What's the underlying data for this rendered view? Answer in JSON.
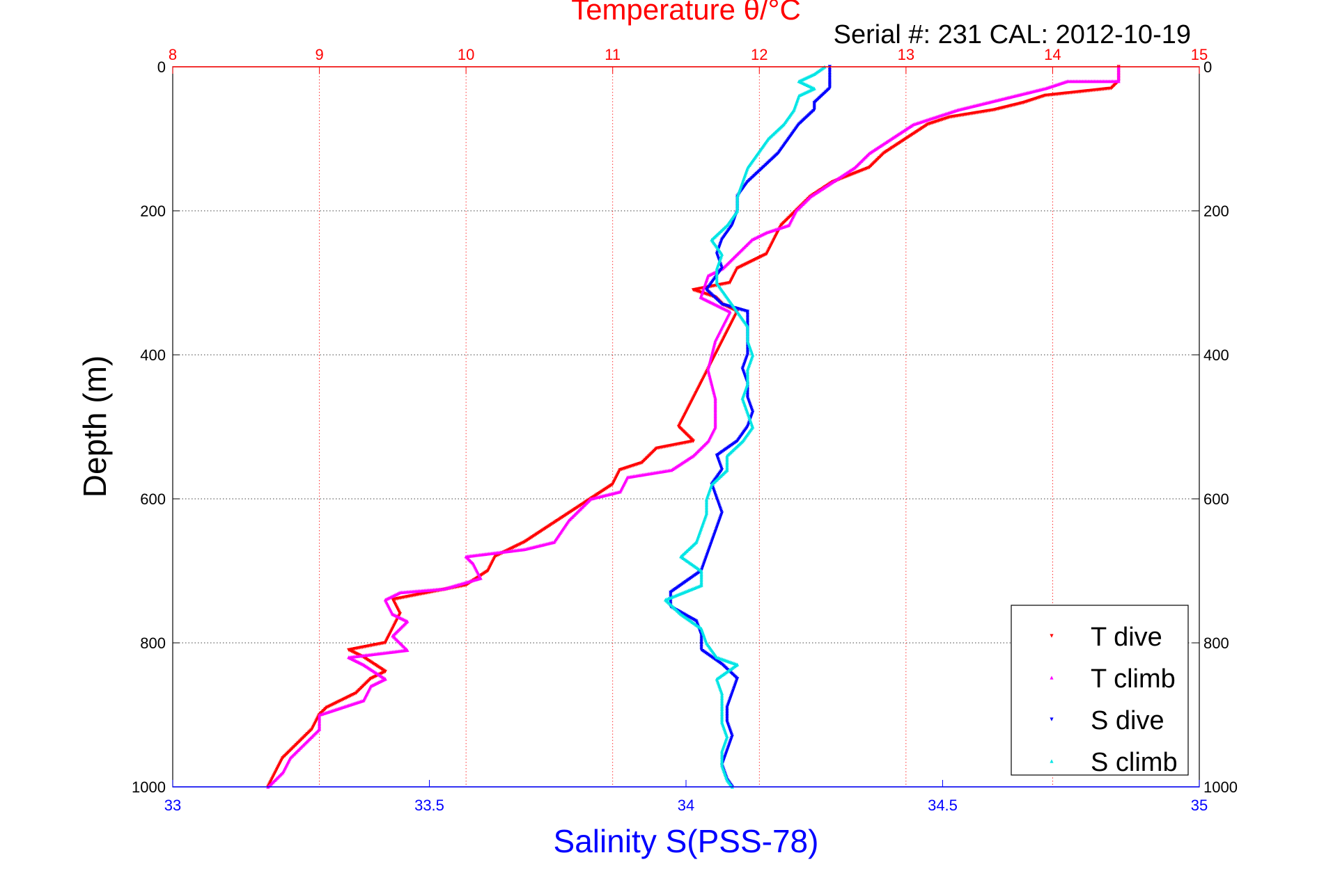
{
  "chart_data": {
    "type": "scatter",
    "title": "Temperature θ/°C",
    "subtitle": "Serial #: 231  CAL: 2012-10-19",
    "ylabel": "Depth (m)",
    "x_top_label": "Temperature θ/°C",
    "x_bottom_label": "Salinity S(PSS-78)",
    "ylim": [
      1000,
      0
    ],
    "y_reversed": true,
    "y_ticks": [
      0,
      200,
      400,
      600,
      800,
      1000
    ],
    "temperature_axis": {
      "range": [
        8,
        15
      ],
      "ticks": [
        8,
        9,
        10,
        11,
        12,
        13,
        14,
        15
      ],
      "color": "#ff0000",
      "position": "top"
    },
    "salinity_axis": {
      "range": [
        33,
        35
      ],
      "ticks": [
        33,
        33.5,
        34,
        34.5,
        35
      ],
      "color": "#0000ff",
      "position": "bottom"
    },
    "grid": true,
    "legend_position": "bottom-right",
    "series": [
      {
        "name": "T dive",
        "axis": "temperature",
        "color": "#ff0000",
        "marker": "triangle-down",
        "points": [
          [
            14.45,
            0
          ],
          [
            14.45,
            20
          ],
          [
            14.4,
            30
          ],
          [
            13.95,
            40
          ],
          [
            13.8,
            50
          ],
          [
            13.6,
            60
          ],
          [
            13.3,
            70
          ],
          [
            13.15,
            80
          ],
          [
            13.0,
            100
          ],
          [
            12.85,
            120
          ],
          [
            12.75,
            140
          ],
          [
            12.5,
            160
          ],
          [
            12.35,
            180
          ],
          [
            12.25,
            200
          ],
          [
            12.15,
            220
          ],
          [
            12.1,
            240
          ],
          [
            12.05,
            260
          ],
          [
            11.95,
            270
          ],
          [
            11.85,
            280
          ],
          [
            11.8,
            300
          ],
          [
            11.55,
            310
          ],
          [
            11.7,
            320
          ],
          [
            11.75,
            330
          ],
          [
            11.85,
            340
          ],
          [
            11.8,
            360
          ],
          [
            11.75,
            380
          ],
          [
            11.7,
            400
          ],
          [
            11.65,
            420
          ],
          [
            11.6,
            440
          ],
          [
            11.55,
            460
          ],
          [
            11.5,
            480
          ],
          [
            11.45,
            500
          ],
          [
            11.5,
            510
          ],
          [
            11.55,
            520
          ],
          [
            11.3,
            530
          ],
          [
            11.2,
            550
          ],
          [
            11.05,
            560
          ],
          [
            11.0,
            580
          ],
          [
            10.85,
            600
          ],
          [
            10.7,
            620
          ],
          [
            10.55,
            640
          ],
          [
            10.4,
            660
          ],
          [
            10.2,
            680
          ],
          [
            10.15,
            700
          ],
          [
            10.0,
            720
          ],
          [
            9.75,
            730
          ],
          [
            9.5,
            740
          ],
          [
            9.55,
            760
          ],
          [
            9.5,
            780
          ],
          [
            9.45,
            800
          ],
          [
            9.2,
            810
          ],
          [
            9.3,
            820
          ],
          [
            9.45,
            840
          ],
          [
            9.35,
            850
          ],
          [
            9.25,
            870
          ],
          [
            9.05,
            890
          ],
          [
            9.0,
            900
          ],
          [
            8.95,
            920
          ],
          [
            8.85,
            940
          ],
          [
            8.75,
            960
          ],
          [
            8.7,
            980
          ],
          [
            8.65,
            1000
          ]
        ]
      },
      {
        "name": "T climb",
        "axis": "temperature",
        "color": "#ff00ff",
        "marker": "triangle-up",
        "points": [
          [
            14.45,
            0
          ],
          [
            14.45,
            20
          ],
          [
            14.1,
            20
          ],
          [
            13.95,
            30
          ],
          [
            13.75,
            40
          ],
          [
            13.55,
            50
          ],
          [
            13.35,
            60
          ],
          [
            13.2,
            70
          ],
          [
            13.05,
            80
          ],
          [
            12.9,
            100
          ],
          [
            12.75,
            120
          ],
          [
            12.65,
            140
          ],
          [
            12.5,
            160
          ],
          [
            12.35,
            180
          ],
          [
            12.25,
            200
          ],
          [
            12.2,
            220
          ],
          [
            12.05,
            230
          ],
          [
            11.95,
            240
          ],
          [
            11.85,
            260
          ],
          [
            11.75,
            280
          ],
          [
            11.65,
            290
          ],
          [
            11.6,
            320
          ],
          [
            11.8,
            340
          ],
          [
            11.7,
            380
          ],
          [
            11.65,
            420
          ],
          [
            11.7,
            460
          ],
          [
            11.7,
            500
          ],
          [
            11.65,
            520
          ],
          [
            11.55,
            540
          ],
          [
            11.4,
            560
          ],
          [
            11.1,
            570
          ],
          [
            11.05,
            590
          ],
          [
            10.85,
            600
          ],
          [
            10.7,
            630
          ],
          [
            10.6,
            660
          ],
          [
            10.4,
            670
          ],
          [
            10.0,
            680
          ],
          [
            10.05,
            690
          ],
          [
            10.1,
            710
          ],
          [
            9.85,
            725
          ],
          [
            9.55,
            730
          ],
          [
            9.45,
            740
          ],
          [
            9.5,
            760
          ],
          [
            9.6,
            770
          ],
          [
            9.5,
            790
          ],
          [
            9.6,
            810
          ],
          [
            9.2,
            820
          ],
          [
            9.3,
            830
          ],
          [
            9.45,
            850
          ],
          [
            9.35,
            860
          ],
          [
            9.3,
            880
          ],
          [
            9.0,
            900
          ],
          [
            9.0,
            920
          ],
          [
            8.9,
            940
          ],
          [
            8.8,
            960
          ],
          [
            8.75,
            980
          ],
          [
            8.65,
            1000
          ]
        ]
      },
      {
        "name": "S dive",
        "axis": "salinity",
        "color": "#0000ff",
        "marker": "triangle-down",
        "points": [
          [
            34.28,
            0
          ],
          [
            34.28,
            20
          ],
          [
            34.28,
            30
          ],
          [
            34.25,
            50
          ],
          [
            34.25,
            60
          ],
          [
            34.22,
            80
          ],
          [
            34.2,
            100
          ],
          [
            34.18,
            120
          ],
          [
            34.15,
            140
          ],
          [
            34.12,
            160
          ],
          [
            34.1,
            180
          ],
          [
            34.1,
            200
          ],
          [
            34.09,
            220
          ],
          [
            34.07,
            240
          ],
          [
            34.06,
            260
          ],
          [
            34.07,
            280
          ],
          [
            34.05,
            300
          ],
          [
            34.04,
            310
          ],
          [
            34.07,
            330
          ],
          [
            34.12,
            340
          ],
          [
            34.12,
            360
          ],
          [
            34.12,
            380
          ],
          [
            34.12,
            400
          ],
          [
            34.11,
            420
          ],
          [
            34.12,
            440
          ],
          [
            34.12,
            460
          ],
          [
            34.13,
            480
          ],
          [
            34.12,
            500
          ],
          [
            34.1,
            520
          ],
          [
            34.06,
            540
          ],
          [
            34.07,
            560
          ],
          [
            34.05,
            580
          ],
          [
            34.06,
            600
          ],
          [
            34.07,
            620
          ],
          [
            34.06,
            640
          ],
          [
            34.05,
            660
          ],
          [
            34.04,
            680
          ],
          [
            34.03,
            700
          ],
          [
            33.97,
            730
          ],
          [
            33.97,
            750
          ],
          [
            34.02,
            770
          ],
          [
            34.03,
            790
          ],
          [
            34.03,
            810
          ],
          [
            34.07,
            830
          ],
          [
            34.1,
            850
          ],
          [
            34.09,
            870
          ],
          [
            34.08,
            890
          ],
          [
            34.08,
            910
          ],
          [
            34.09,
            930
          ],
          [
            34.08,
            950
          ],
          [
            34.07,
            970
          ],
          [
            34.08,
            990
          ],
          [
            34.09,
            1000
          ]
        ]
      },
      {
        "name": "S climb",
        "axis": "salinity",
        "color": "#00e5e5",
        "marker": "triangle-up",
        "points": [
          [
            34.27,
            0
          ],
          [
            34.25,
            10
          ],
          [
            34.22,
            20
          ],
          [
            34.25,
            30
          ],
          [
            34.22,
            40
          ],
          [
            34.21,
            60
          ],
          [
            34.19,
            80
          ],
          [
            34.16,
            100
          ],
          [
            34.14,
            120
          ],
          [
            34.12,
            140
          ],
          [
            34.11,
            160
          ],
          [
            34.1,
            180
          ],
          [
            34.1,
            200
          ],
          [
            34.08,
            220
          ],
          [
            34.05,
            240
          ],
          [
            34.07,
            260
          ],
          [
            34.06,
            280
          ],
          [
            34.06,
            300
          ],
          [
            34.08,
            320
          ],
          [
            34.1,
            340
          ],
          [
            34.12,
            360
          ],
          [
            34.12,
            380
          ],
          [
            34.13,
            400
          ],
          [
            34.12,
            420
          ],
          [
            34.12,
            440
          ],
          [
            34.11,
            460
          ],
          [
            34.12,
            480
          ],
          [
            34.13,
            500
          ],
          [
            34.11,
            520
          ],
          [
            34.08,
            540
          ],
          [
            34.08,
            560
          ],
          [
            34.05,
            580
          ],
          [
            34.04,
            600
          ],
          [
            34.04,
            620
          ],
          [
            34.03,
            640
          ],
          [
            34.02,
            660
          ],
          [
            33.99,
            680
          ],
          [
            34.03,
            700
          ],
          [
            34.03,
            720
          ],
          [
            33.96,
            740
          ],
          [
            33.99,
            760
          ],
          [
            34.03,
            780
          ],
          [
            34.04,
            800
          ],
          [
            34.06,
            820
          ],
          [
            34.1,
            830
          ],
          [
            34.06,
            850
          ],
          [
            34.07,
            870
          ],
          [
            34.07,
            890
          ],
          [
            34.07,
            910
          ],
          [
            34.08,
            930
          ],
          [
            34.07,
            950
          ],
          [
            34.07,
            970
          ],
          [
            34.08,
            990
          ],
          [
            34.09,
            1000
          ]
        ]
      }
    ]
  }
}
